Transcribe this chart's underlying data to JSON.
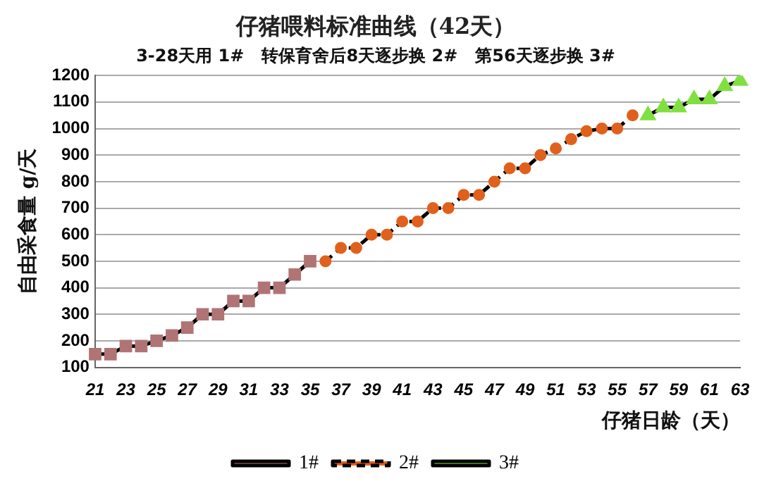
{
  "chart_data": {
    "type": "line",
    "title": "仔猪喂料标准曲线（42天）",
    "subtitle": "3-28天用 1#   转保育舍后8天逐步换 2#   第56天逐步换 3#",
    "xlabel": "仔猪日龄（天）",
    "ylabel": "自由采食量 g/天",
    "categories": [
      "21",
      null,
      "23",
      null,
      "25",
      null,
      "27",
      null,
      "29",
      null,
      "31",
      null,
      "33",
      null,
      "35",
      null,
      "37",
      null,
      "39",
      null,
      "41",
      null,
      "43",
      null,
      "45",
      null,
      "47",
      null,
      "49",
      null,
      "51",
      null,
      "53",
      null,
      "55",
      null,
      "57",
      null,
      "59",
      null,
      "61",
      null,
      "63"
    ],
    "series": [
      {
        "name": "1#",
        "color": "#b07474",
        "marker": "square",
        "line_style": "solid",
        "values": [
          150,
          150,
          180,
          180,
          200,
          220,
          250,
          300,
          300,
          350,
          350,
          400,
          400,
          450,
          500,
          null,
          null,
          null,
          null,
          null,
          null,
          null,
          null,
          null,
          null,
          null,
          null,
          null,
          null,
          null,
          null,
          null,
          null,
          null,
          null,
          null,
          null,
          null,
          null,
          null,
          null,
          null,
          null
        ]
      },
      {
        "name": "2#",
        "color": "#e0601c",
        "marker": "circle",
        "line_style": "dashed",
        "values": [
          null,
          null,
          null,
          null,
          null,
          null,
          null,
          null,
          null,
          null,
          null,
          null,
          null,
          null,
          null,
          500,
          550,
          550,
          600,
          600,
          650,
          650,
          700,
          700,
          750,
          750,
          800,
          850,
          850,
          900,
          925,
          960,
          990,
          1000,
          1000,
          1050,
          null,
          null,
          null,
          null,
          null,
          null,
          null
        ]
      },
      {
        "name": "3#",
        "color": "#80e040",
        "marker": "triangle",
        "line_style": "solid",
        "values": [
          null,
          null,
          null,
          null,
          null,
          null,
          null,
          null,
          null,
          null,
          null,
          null,
          null,
          null,
          null,
          null,
          null,
          null,
          null,
          null,
          null,
          null,
          null,
          null,
          null,
          null,
          null,
          null,
          null,
          null,
          null,
          null,
          null,
          null,
          null,
          null,
          1050,
          1080,
          1080,
          1110,
          1110,
          1160,
          1180
        ]
      }
    ],
    "ylim": [
      100,
      1200
    ],
    "yticks": [
      100,
      200,
      300,
      400,
      500,
      600,
      700,
      800,
      900,
      1000,
      1100,
      1200
    ],
    "grid": "y",
    "legend": "bottom"
  }
}
